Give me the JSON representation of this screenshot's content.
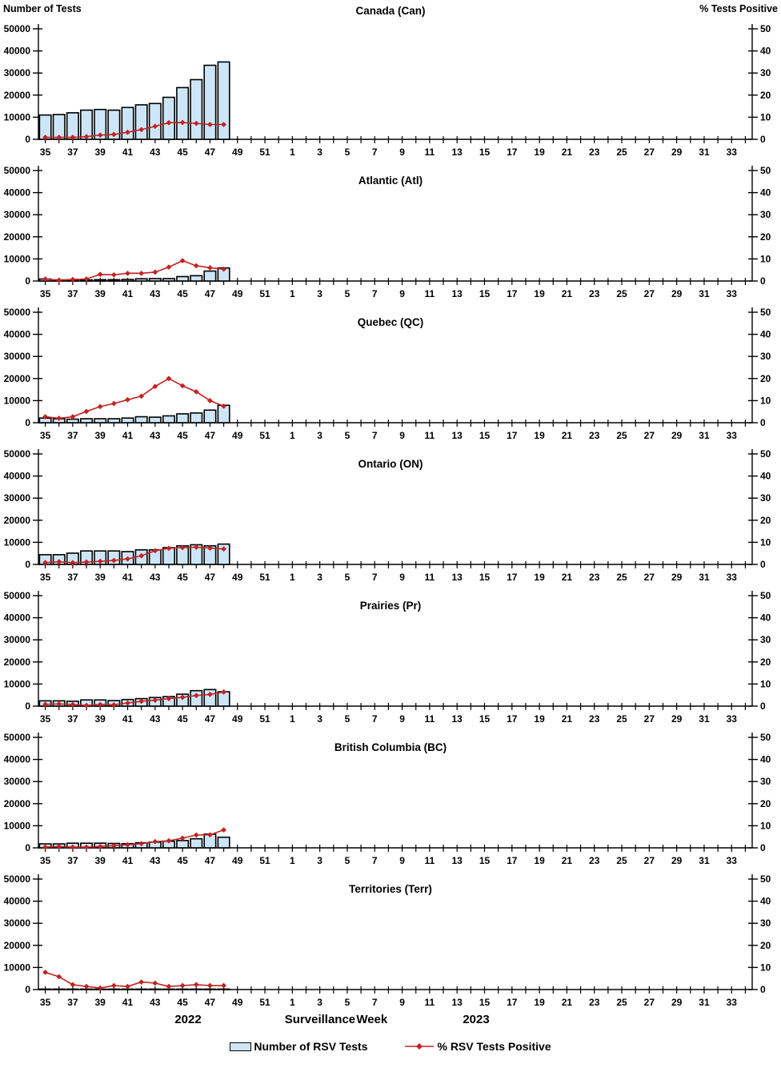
{
  "header": {
    "left_axis_title": "Number of Tests",
    "right_axis_title": "% Tests Positive"
  },
  "footer": {
    "year_left": "2022",
    "x_axis_title": "Surveillance Week",
    "year_right": "2023",
    "legend": {
      "bar_label": "Number of RSV Tests",
      "line_label": "% RSV Tests Positive"
    }
  },
  "colors": {
    "bar_fill": "#cde6f7",
    "bar_stroke": "#000000",
    "pct_line": "#c32222",
    "axis": "#000000"
  },
  "chart_data": {
    "type": "bar",
    "description": "7 stacked combo panels: bars = number of RSV tests (left axis), red diamond line = % RSV tests positive (right axis), by surveillance week 2022 (w35-52) to 2023 (w1-34); data plotted for weeks 35-48 of 2022 only",
    "n_week_slots": 52,
    "x_tick_labels": [
      "35",
      "37",
      "39",
      "41",
      "43",
      "45",
      "47",
      "49",
      "51",
      "1",
      "3",
      "5",
      "7",
      "9",
      "11",
      "13",
      "15",
      "17",
      "19",
      "21",
      "23",
      "25",
      "27",
      "29",
      "31",
      "33"
    ],
    "data_weeks": [
      35,
      36,
      37,
      38,
      39,
      40,
      41,
      42,
      43,
      44,
      45,
      46,
      47,
      48
    ],
    "left_axis": {
      "label": "Number of Tests",
      "min": 0,
      "max": 50000,
      "ticks": [
        0,
        10000,
        20000,
        30000,
        40000,
        50000
      ],
      "tick_labels": [
        "0",
        "10000",
        "20000",
        "30000",
        "40000",
        "50000"
      ]
    },
    "right_axis": {
      "label": "% Tests Positive",
      "min": 0,
      "max": 50,
      "ticks": [
        0,
        10,
        20,
        30,
        40,
        50
      ],
      "tick_labels": [
        "0",
        "10",
        "20",
        "30",
        "40",
        "50"
      ]
    },
    "panels": [
      {
        "title": "Canada (Can)",
        "bars": [
          11000,
          11200,
          12000,
          13200,
          13500,
          13200,
          14400,
          15600,
          16200,
          19000,
          23400,
          27000,
          33500,
          35000
        ],
        "pct": [
          0.9,
          0.9,
          0.9,
          1.2,
          1.9,
          2.2,
          3.2,
          4.4,
          5.9,
          7.5,
          7.6,
          7.2,
          6.7,
          6.7
        ]
      },
      {
        "title": "Atlantic (Atl)",
        "bars": [
          900,
          500,
          500,
          500,
          600,
          600,
          700,
          1000,
          1100,
          1100,
          2000,
          2400,
          4500,
          5900
        ],
        "pct": [
          0.9,
          0.4,
          0.7,
          0.9,
          3.0,
          2.8,
          3.5,
          3.5,
          4.0,
          6.3,
          9.2,
          6.9,
          6.0,
          5.4
        ]
      },
      {
        "title": "Quebec (QC)",
        "bars": [
          2100,
          1800,
          1600,
          1800,
          1800,
          1800,
          2100,
          2700,
          2500,
          3100,
          4000,
          4400,
          5700,
          7900
        ],
        "pct": [
          2.7,
          2.0,
          2.7,
          5.1,
          7.3,
          8.7,
          10.4,
          12.0,
          16.4,
          20.0,
          16.7,
          14.0,
          10.0,
          7.5
        ]
      },
      {
        "title": "Ontario (ON)",
        "bars": [
          4400,
          4400,
          5100,
          6100,
          6100,
          6100,
          5800,
          6600,
          6600,
          7600,
          8400,
          8900,
          8400,
          9200
        ],
        "pct": [
          0.8,
          1.2,
          0.8,
          1.1,
          1.4,
          1.8,
          2.5,
          3.9,
          6.2,
          7.3,
          7.6,
          7.8,
          7.4,
          7.0
        ]
      },
      {
        "title": "Prairies (Pr)",
        "bars": [
          2400,
          2400,
          2200,
          2800,
          2800,
          2500,
          3000,
          3400,
          3900,
          4300,
          5400,
          7000,
          7500,
          6500
        ],
        "pct": [
          0.8,
          1.0,
          0.7,
          0.3,
          0.7,
          0.6,
          1.4,
          2.2,
          2.7,
          3.4,
          4.0,
          4.8,
          5.3,
          6.4
        ]
      },
      {
        "title": "British Columbia (BC)",
        "bars": [
          1800,
          1800,
          2100,
          2100,
          2100,
          2000,
          1900,
          2300,
          2600,
          3000,
          3300,
          4100,
          6200,
          4800
        ],
        "pct": [
          0.3,
          0.6,
          0.3,
          0.3,
          0.6,
          1.0,
          1.4,
          1.9,
          2.8,
          3.2,
          4.4,
          5.8,
          5.9,
          8.1
        ]
      },
      {
        "title": "Territories (Terr)",
        "bars": [
          200,
          200,
          200,
          200,
          200,
          200,
          200,
          200,
          200,
          200,
          200,
          200,
          200,
          200
        ],
        "pct": [
          7.8,
          5.8,
          2.2,
          1.4,
          0.7,
          1.8,
          1.4,
          3.4,
          2.9,
          1.4,
          1.8,
          2.2,
          1.8,
          1.8
        ]
      }
    ]
  }
}
